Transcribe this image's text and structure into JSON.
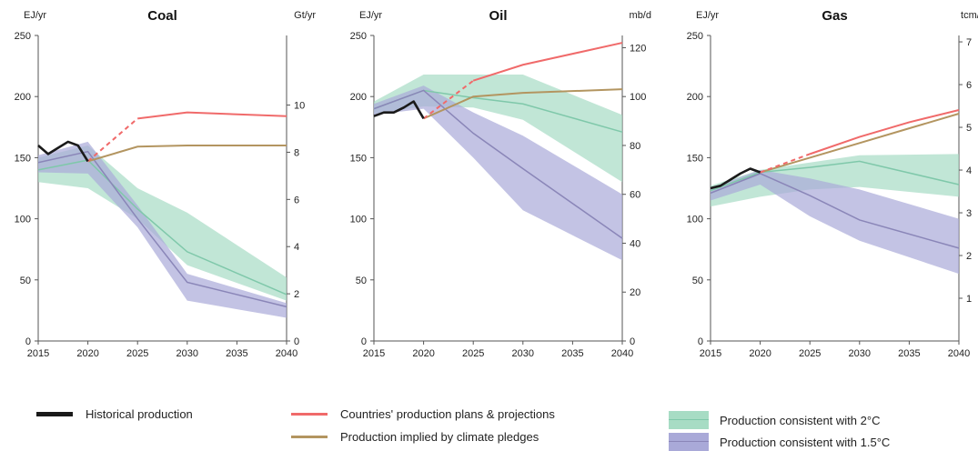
{
  "chart_data": [
    {
      "type": "line",
      "title": "Coal",
      "ylabel": "EJ/yr",
      "y2label": "Gt/yr",
      "xlim": [
        2015,
        2040
      ],
      "ylim": [
        0,
        250
      ],
      "y2lim": [
        0,
        12.95
      ],
      "x_ticks": [
        2015,
        2020,
        2025,
        2030,
        2035,
        2040
      ],
      "y_ticks": [
        0,
        50,
        100,
        150,
        200,
        250
      ],
      "y2_ticks": [
        0,
        2,
        4,
        6,
        8,
        10
      ],
      "series": [
        {
          "name": "Historical production",
          "x": [
            2015,
            2016,
            2017,
            2018,
            2019,
            2020
          ],
          "y": [
            160,
            153,
            158,
            163,
            160,
            147
          ]
        },
        {
          "name": "Countries' production plans & projections",
          "x": [
            2020,
            2025,
            2030,
            2040
          ],
          "y": [
            147,
            182,
            187,
            184
          ],
          "dashed_until": 2025
        },
        {
          "name": "Production implied by climate pledges",
          "x": [
            2020,
            2025,
            2030,
            2040
          ],
          "y": [
            147,
            159,
            160,
            160
          ]
        },
        {
          "name": "Production consistent with 2°C",
          "x": [
            2015,
            2020,
            2025,
            2030,
            2040
          ],
          "y": [
            140,
            148,
            108,
            73,
            38
          ],
          "band_low": [
            130,
            125,
            100,
            62,
            33
          ],
          "band_high": [
            150,
            160,
            125,
            105,
            52
          ]
        },
        {
          "name": "Production consistent with 1.5°C",
          "x": [
            2015,
            2020,
            2025,
            2030,
            2040
          ],
          "y": [
            146,
            155,
            100,
            48,
            28
          ],
          "band_low": [
            138,
            137,
            93,
            33,
            19
          ],
          "band_high": [
            152,
            163,
            111,
            55,
            31
          ]
        }
      ]
    },
    {
      "type": "line",
      "title": "Oil",
      "ylabel": "EJ/yr",
      "y2label": "mb/d",
      "xlim": [
        2015,
        2040
      ],
      "ylim": [
        0,
        250
      ],
      "y2lim": [
        0,
        125
      ],
      "x_ticks": [
        2015,
        2020,
        2025,
        2030,
        2035,
        2040
      ],
      "y_ticks": [
        0,
        50,
        100,
        150,
        200,
        250
      ],
      "y2_ticks": [
        0,
        20,
        40,
        60,
        80,
        100,
        120
      ],
      "series": [
        {
          "name": "Historical production",
          "x": [
            2015,
            2016,
            2017,
            2018,
            2019,
            2020
          ],
          "y": [
            184,
            187,
            187,
            191,
            196,
            182
          ]
        },
        {
          "name": "Countries' production plans & projections",
          "x": [
            2020,
            2025,
            2030,
            2040
          ],
          "y": [
            182,
            213,
            226,
            244
          ],
          "dashed_until": 2025
        },
        {
          "name": "Production implied by climate pledges",
          "x": [
            2020,
            2025,
            2030,
            2040
          ],
          "y": [
            182,
            200,
            203,
            206
          ]
        },
        {
          "name": "Production consistent with 2°C",
          "x": [
            2015,
            2020,
            2025,
            2030,
            2040
          ],
          "y": [
            190,
            205,
            199,
            194,
            171
          ],
          "band_low": [
            186,
            192,
            191,
            181,
            130
          ],
          "band_high": [
            196,
            218,
            218,
            218,
            185
          ]
        },
        {
          "name": "Production consistent with 1.5°C",
          "x": [
            2015,
            2020,
            2025,
            2030,
            2040
          ],
          "y": [
            190,
            205,
            170,
            141,
            84
          ],
          "band_low": [
            185,
            190,
            150,
            107,
            66
          ],
          "band_high": [
            194,
            209,
            187,
            168,
            120
          ]
        }
      ]
    },
    {
      "type": "line",
      "title": "Gas",
      "ylabel": "EJ/yr",
      "y2label": "tcm/yr",
      "xlim": [
        2015,
        2040
      ],
      "ylim": [
        0,
        250
      ],
      "y2lim": [
        0,
        7.15
      ],
      "x_ticks": [
        2015,
        2020,
        2025,
        2030,
        2035,
        2040
      ],
      "y_ticks": [
        0,
        50,
        100,
        150,
        200,
        250
      ],
      "y2_ticks": [
        1,
        2,
        3,
        4,
        5,
        6,
        7
      ],
      "series": [
        {
          "name": "Historical production",
          "x": [
            2015,
            2016,
            2017,
            2018,
            2019,
            2020
          ],
          "y": [
            125,
            127,
            132,
            137,
            141,
            138
          ]
        },
        {
          "name": "Countries' production plans & projections",
          "x": [
            2020,
            2025,
            2030,
            2035,
            2040
          ],
          "y": [
            138,
            153,
            167,
            179,
            189
          ],
          "dashed_until": 2025
        },
        {
          "name": "Production implied by climate pledges",
          "x": [
            2020,
            2025,
            2030,
            2035,
            2040
          ],
          "y": [
            138,
            150,
            162,
            174,
            186
          ]
        },
        {
          "name": "Production consistent with 2°C",
          "x": [
            2015,
            2020,
            2025,
            2030,
            2040
          ],
          "y": [
            123,
            138,
            142,
            147,
            128
          ],
          "band_low": [
            110,
            118,
            124,
            126,
            118
          ],
          "band_high": [
            127,
            140,
            146,
            152,
            153
          ]
        },
        {
          "name": "Production consistent with 1.5°C",
          "x": [
            2015,
            2020,
            2025,
            2030,
            2040
          ],
          "y": [
            121,
            137,
            119,
            99,
            76
          ],
          "band_low": [
            115,
            128,
            102,
            82,
            55
          ],
          "band_high": [
            125,
            140,
            133,
            124,
            100
          ]
        }
      ]
    }
  ],
  "legend": {
    "historical": "Historical production",
    "plans": "Countries' production plans & projections",
    "pledges": "Production implied by climate pledges",
    "two_deg": "Production consistent with 2°C",
    "one_five": "Production consistent with 1.5°C"
  },
  "colors": {
    "historical": "#1a1a1a",
    "plans": "#f06a6a",
    "pledges": "#b39560",
    "two_deg_line": "#7fc8aa",
    "two_deg_band": "#a7dcc4",
    "one_five_line": "#8a86b8",
    "one_five_band": "#a9a9d8",
    "axis": "#555555",
    "tick_text": "#222222"
  }
}
